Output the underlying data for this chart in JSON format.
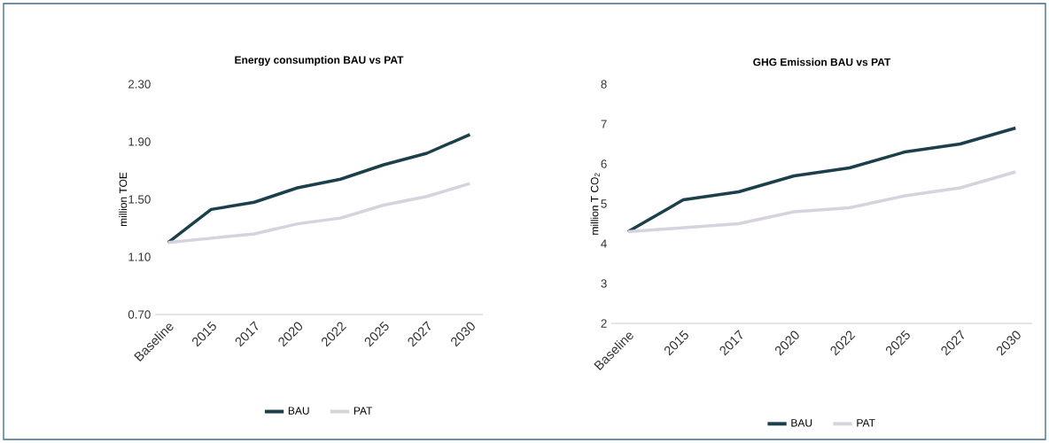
{
  "chart_data": [
    {
      "type": "line",
      "title": "Energy consumption BAU vs PAT",
      "ylabel": "million TOE",
      "categories": [
        "Baseline",
        "2015",
        "2017",
        "2020",
        "2022",
        "2025",
        "2027",
        "2030"
      ],
      "ylim": [
        0.7,
        2.3
      ],
      "yticks": [
        {
          "value": 0.7,
          "label": "0.70"
        },
        {
          "value": 1.1,
          "label": "1.10"
        },
        {
          "value": 1.5,
          "label": "1.50"
        },
        {
          "value": 1.9,
          "label": "1.90"
        },
        {
          "value": 2.3,
          "label": "2.30"
        }
      ],
      "legend": "bottom",
      "series": [
        {
          "name": "BAU",
          "color": "#1b3f4b",
          "values": [
            1.2,
            1.43,
            1.48,
            1.58,
            1.64,
            1.74,
            1.82,
            1.95
          ]
        },
        {
          "name": "PAT",
          "color": "#d8d2dc",
          "values": [
            1.2,
            1.23,
            1.26,
            1.33,
            1.37,
            1.46,
            1.52,
            1.61
          ]
        }
      ]
    },
    {
      "type": "line",
      "title": "GHG Emission BAU vs PAT",
      "ylabel": "million T CO$_{2}$",
      "categories": [
        "Baseline",
        "2015",
        "2017",
        "2020",
        "2022",
        "2025",
        "2027",
        "2030"
      ],
      "ylim": [
        2,
        8
      ],
      "yticks": [
        2,
        3,
        4,
        5,
        6,
        7,
        8
      ],
      "legend": "bottom",
      "series": [
        {
          "name": "BAU",
          "color": "#1b3f4b",
          "values": [
            4.3,
            5.1,
            5.3,
            5.7,
            5.9,
            6.3,
            6.5,
            6.9
          ]
        },
        {
          "name": "PAT",
          "color": "#d8d2dc",
          "values": [
            4.3,
            4.4,
            4.5,
            4.8,
            4.9,
            5.2,
            5.4,
            5.8
          ]
        }
      ]
    }
  ]
}
